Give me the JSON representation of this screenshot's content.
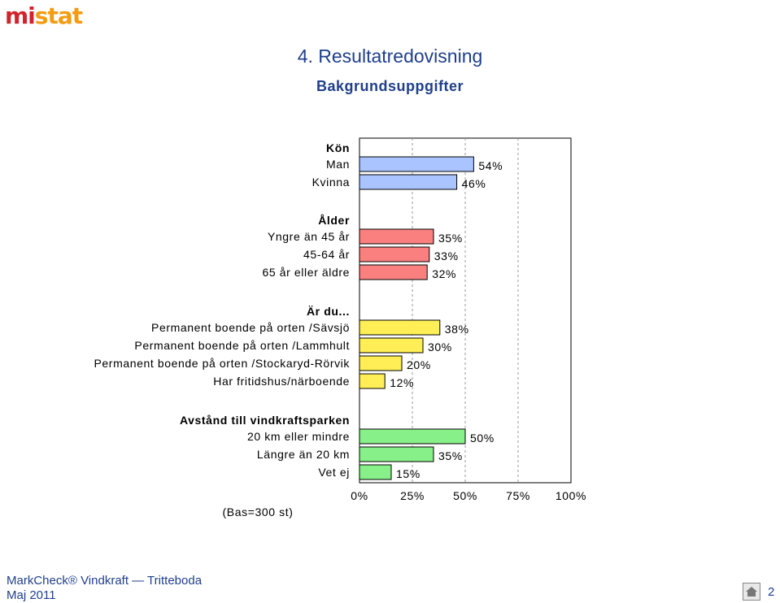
{
  "logo": {
    "part1": "mi",
    "part2": "stat"
  },
  "title": "4. Resultatredovisning",
  "subtitle": "Bakgrundsuppgifter",
  "footer": {
    "line1": "MarkCheck® Vindkraft — Tritteboda",
    "line2": "Maj 2011",
    "page": "2"
  },
  "chart_data": {
    "type": "bar",
    "orientation": "horizontal",
    "xlim": [
      0,
      100
    ],
    "xticks": [
      "0%",
      "25%",
      "50%",
      "75%",
      "100%"
    ],
    "grid": true,
    "base_note": "(Bas=300 st)",
    "groups": [
      {
        "title": "Kön",
        "color": "#aac4ff",
        "categories": [
          "Man",
          "Kvinna"
        ],
        "values": [
          54,
          46
        ]
      },
      {
        "title": "Ålder",
        "color": "#fa8080",
        "categories": [
          "Yngre än 45 år",
          "45-64 år",
          "65 år eller äldre"
        ],
        "values": [
          35,
          33,
          32
        ]
      },
      {
        "title": "Är du...",
        "color": "#ffee55",
        "categories": [
          "Permanent boende på orten /Sävsjö",
          "Permanent boende på orten /Lammhult",
          "Permanent boende på orten /Stockaryd-Rörvik",
          "Har fritidshus/närboende"
        ],
        "values": [
          38,
          30,
          20,
          12
        ]
      },
      {
        "title": "Avstånd till vindkraftsparken",
        "color": "#88f088",
        "categories": [
          "20 km eller mindre",
          "Längre än 20 km",
          "Vet ej"
        ],
        "values": [
          50,
          35,
          15
        ]
      }
    ]
  }
}
